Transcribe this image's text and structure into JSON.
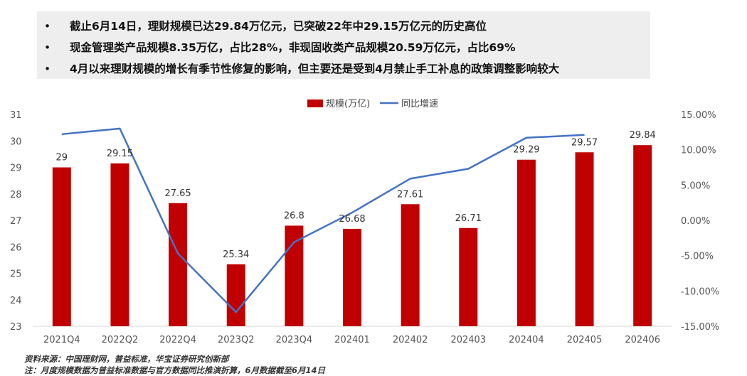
{
  "bullets": [
    "截止6月14日，理财规模已达29.84万亿元，已突破22年中29.15万亿元的历史高位",
    "现金管理类产品规模8.35万亿，占比28%，非现固收类产品规模20.59万亿元，占比69%",
    "4月以来理财规模的增长有季节性修复的影响，但主要还是受到4月禁止手工补息的政策调整影响较大"
  ],
  "source": "资料来源：中国理财网，普益标准，华宝证券研究创新部",
  "note": "注：月度规模数据为普益标准数据与官方数据同比推演折算，6月数据截至6月14日",
  "chart_data": {
    "type": "bar",
    "title": "",
    "categories": [
      "2021Q4",
      "2022Q2",
      "2022Q4",
      "2023Q2",
      "2023Q4",
      "202401",
      "202402",
      "202403",
      "202404",
      "202405",
      "202406"
    ],
    "series": [
      {
        "name": "规模(万亿)",
        "type": "bar",
        "axis": "left",
        "color": "#c00000",
        "values": [
          29,
          29.15,
          27.65,
          25.34,
          26.8,
          26.68,
          27.61,
          26.71,
          29.29,
          29.57,
          29.84
        ],
        "labels": [
          "29",
          "29.15",
          "27.65",
          "25.34",
          "26.8",
          "26.68",
          "27.61",
          "26.71",
          "29.29",
          "29.57",
          "29.84"
        ]
      },
      {
        "name": "同比增速",
        "type": "line",
        "axis": "right",
        "color": "#4472c4",
        "values": [
          12.2,
          13.0,
          -4.7,
          -13.0,
          -3.1,
          1.1,
          5.9,
          7.3,
          11.7,
          12.1,
          null
        ]
      }
    ],
    "y_left": {
      "min": 23,
      "max": 31,
      "ticks": [
        "23",
        "24",
        "25",
        "26",
        "27",
        "28",
        "29",
        "30",
        "31"
      ]
    },
    "y_right": {
      "min": -15,
      "max": 15,
      "ticks": [
        "-15.00%",
        "-10.00%",
        "-5.00%",
        "0.00%",
        "5.00%",
        "10.00%",
        "15.00%"
      ]
    },
    "legend": "top",
    "grid": false
  }
}
